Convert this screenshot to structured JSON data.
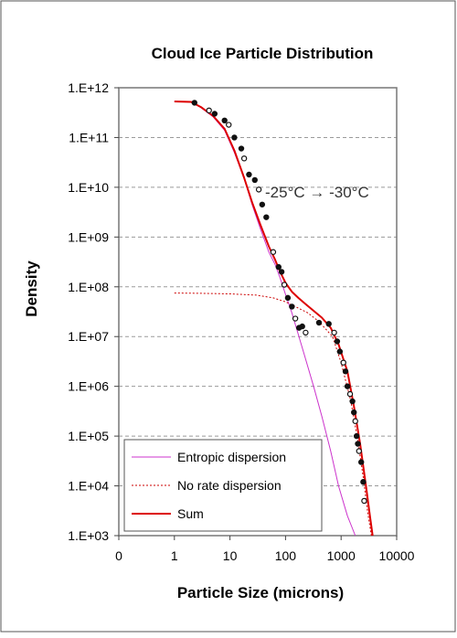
{
  "chart_data": {
    "type": "line",
    "title": "Cloud Ice Particle Distribution",
    "xlabel": "Particle Size (microns)",
    "ylabel": "Density",
    "x_scale": "log",
    "y_scale": "log",
    "xlim": [
      0.1,
      10000
    ],
    "ylim": [
      1000,
      1000000000000
    ],
    "x_tick_values": [
      0.1,
      1,
      10,
      100,
      1000,
      10000
    ],
    "x_tick_labels": [
      "0",
      "1",
      "10",
      "100",
      "1000",
      "10000"
    ],
    "y_tick_values": [
      1000,
      10000,
      100000,
      1000000,
      10000000,
      100000000,
      1000000000,
      10000000000,
      100000000000,
      1000000000000
    ],
    "y_tick_labels": [
      "1.E+03",
      "1.E+04",
      "1.E+05",
      "1.E+06",
      "1.E+07",
      "1.E+08",
      "1.E+09",
      "1.E+10",
      "1.E+11",
      "1.E+12"
    ],
    "grid": true,
    "legend_position": "bottom-left",
    "annotation": "-25°C → -30°C",
    "series": [
      {
        "name": "Entropic dispersion",
        "color": "#cc33cc",
        "style": "solid",
        "x": [
          1,
          2,
          3,
          5,
          8,
          12,
          18,
          25,
          35,
          50,
          65,
          80,
          100,
          130,
          170,
          230,
          320,
          450,
          650,
          900,
          1300,
          1800
        ],
        "y": [
          530000000000,
          520000000000,
          400000000000,
          260000000000,
          140000000000,
          50000000000,
          15000000000,
          4500000000,
          1500000000,
          500000000,
          280000000,
          150000000,
          70000000,
          30000000,
          11000000,
          3500000,
          1000000,
          250000,
          50000,
          10000,
          2500,
          1000
        ]
      },
      {
        "name": "No rate dispersion",
        "color": "#cc0000",
        "style": "dotted",
        "x": [
          1,
          3,
          10,
          30,
          60,
          100,
          150,
          250,
          400,
          700,
          1000,
          1500,
          2000,
          2500,
          3000,
          3500
        ],
        "y": [
          75000000,
          74000000,
          72000000,
          68000000,
          60000000,
          50000000,
          40000000,
          30000000,
          20000000,
          10000000,
          3000000,
          500000,
          80000,
          15000,
          3000,
          1000
        ]
      },
      {
        "name": "Sum",
        "color": "#dd0000",
        "style": "solid",
        "x": [
          1,
          2,
          3,
          5,
          8,
          12,
          18,
          25,
          35,
          50,
          65,
          80,
          100,
          130,
          170,
          230,
          320,
          450,
          650,
          900,
          1300,
          1700,
          2200,
          2800,
          3300,
          3700
        ],
        "y": [
          530000000000,
          520000000000,
          410000000000,
          270000000000,
          150000000000,
          55000000000,
          15500000000,
          5000000000,
          1800000000,
          650000000,
          350000000,
          200000000,
          120000000,
          80000000,
          60000000,
          45000000,
          33000000,
          24000000,
          15000000,
          7000000,
          2000000,
          400000,
          70000,
          10000,
          2500,
          1000
        ]
      },
      {
        "name": "",
        "type": "scatter",
        "color": "#111111",
        "x": [
          2.3,
          4.2,
          5.3,
          8,
          9.5,
          12,
          16,
          18,
          22,
          28,
          33,
          38,
          45,
          60,
          75,
          85,
          95,
          110,
          130,
          150,
          175,
          200,
          230,
          400,
          600,
          750,
          850,
          950,
          1100,
          1200,
          1300,
          1450,
          1600,
          1700,
          1800,
          1900,
          2000,
          2100,
          2300,
          2500,
          2600
        ],
        "y": [
          500000000000,
          350000000000,
          300000000000,
          220000000000,
          180000000000,
          100000000000,
          60000000000,
          38000000000,
          18000000000,
          14000000000,
          9000000000,
          4500000000,
          2500000000,
          500000000,
          250000000,
          200000000,
          110000000,
          60000000,
          40000000,
          23000000,
          15000000,
          16000000,
          12000000,
          19000000,
          18000000,
          12000000,
          8000000,
          5000000,
          3000000,
          2000000,
          1000000,
          700000,
          500000,
          300000,
          200000,
          100000,
          70000,
          50000,
          30000,
          12000,
          5000
        ]
      }
    ]
  }
}
